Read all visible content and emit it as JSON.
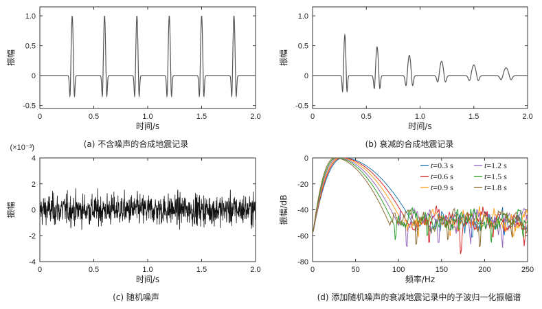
{
  "chart_data": [
    {
      "id": "a",
      "type": "line",
      "caption": "(a) 不含噪声的合成地震记录",
      "xlabel": "时间/s",
      "ylabel": "振幅",
      "xlim": [
        0,
        2.0
      ],
      "ylim": [
        -0.55,
        1.15
      ],
      "xticks": [
        "0",
        "0.5",
        "1.0",
        "1.5",
        "2.0"
      ],
      "yticks": [
        "-0.5",
        "0",
        "0.5",
        "1.0"
      ],
      "spike_times": [
        0.3,
        0.6,
        0.9,
        1.2,
        1.5,
        1.8
      ],
      "spike_peaks": [
        1.0,
        1.0,
        1.0,
        1.0,
        1.0,
        1.0
      ],
      "spike_trough": -0.43,
      "color": "#555555"
    },
    {
      "id": "b",
      "type": "line",
      "caption": "(b) 衰减的合成地震记录",
      "xlabel": "时间/s",
      "ylabel": "振幅",
      "xlim": [
        0,
        2.0
      ],
      "ylim": [
        -0.55,
        1.15
      ],
      "xticks": [
        "0",
        "0.5",
        "1.0",
        "1.5",
        "2.0"
      ],
      "yticks": [
        "-0.5",
        "0",
        "0.5",
        "1.0"
      ],
      "spike_times": [
        0.3,
        0.6,
        0.9,
        1.2,
        1.5,
        1.8
      ],
      "spike_peaks": [
        0.68,
        0.48,
        0.34,
        0.24,
        0.18,
        0.13
      ],
      "spike_troughs": [
        -0.33,
        -0.26,
        -0.2,
        -0.13,
        -0.1,
        -0.08
      ],
      "color": "#555555"
    },
    {
      "id": "c",
      "type": "line",
      "caption": "(c) 随机噪声",
      "xlabel": "时间/s",
      "ylabel": "振幅",
      "scale_note": "(×10⁻³)",
      "xlim": [
        0,
        2.0
      ],
      "ylim": [
        -4,
        4
      ],
      "xticks": [
        "0",
        "0.5",
        "1.0",
        "1.5",
        "2.0"
      ],
      "yticks": [
        "-4",
        "-2",
        "0",
        "2",
        "4"
      ],
      "noise_amplitude_range": [
        -3.2,
        2.8
      ],
      "color": "#111111"
    },
    {
      "id": "d",
      "type": "line",
      "caption": "(d) 添加随机噪声的衰减地震记录中的子波归一化振幅谱",
      "xlabel": "频率/Hz",
      "ylabel": "振幅/dB",
      "xlim": [
        0,
        250
      ],
      "ylim": [
        -80,
        0
      ],
      "xticks": [
        "0",
        "50",
        "100",
        "150",
        "200",
        "250"
      ],
      "yticks": [
        "0",
        "-20",
        "-40",
        "-60",
        "-80"
      ],
      "legend_position": "top-right",
      "series": [
        {
          "name": "t = 0.3 s",
          "t": "0.3",
          "color": "#1f77b4",
          "peak_hz": 36,
          "cutoff_hz": 118
        },
        {
          "name": "t = 0.6 s",
          "t": "0.6",
          "color": "#d62728",
          "peak_hz": 34,
          "cutoff_hz": 112
        },
        {
          "name": "t = 0.9 s",
          "t": "0.9",
          "color": "#ff9f1c",
          "peak_hz": 32,
          "cutoff_hz": 106
        },
        {
          "name": "t = 1.2 s",
          "t": "1.2",
          "color": "#9467bd",
          "peak_hz": 30,
          "cutoff_hz": 100
        },
        {
          "name": "t = 1.5 s",
          "t": "1.5",
          "color": "#2ca02c",
          "peak_hz": 28,
          "cutoff_hz": 95
        },
        {
          "name": "t = 1.8 s",
          "t": "1.8",
          "color": "#8c6d31",
          "peak_hz": 26,
          "cutoff_hz": 90
        }
      ]
    }
  ]
}
